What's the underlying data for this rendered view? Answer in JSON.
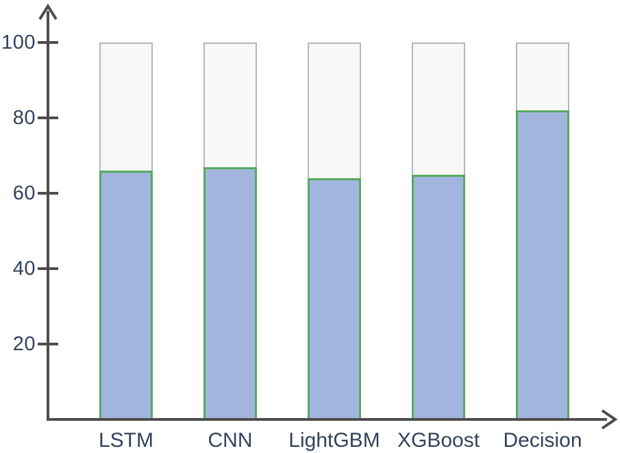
{
  "chart_data": {
    "type": "bar",
    "title": "",
    "categories": [
      "LSTM",
      "CNN",
      "LightGBM",
      "XGBoost",
      "Decision"
    ],
    "values": [
      66,
      67,
      64,
      65,
      82
    ],
    "track_max": 100,
    "xlabel": "",
    "ylabel": "",
    "ylim": [
      0,
      110
    ],
    "yticks": [
      20,
      40,
      60,
      80,
      100
    ],
    "grid": false,
    "legend_position": "none",
    "colors": {
      "bar_fill": "#a2b5df",
      "bar_border": "#56aa5e",
      "track_fill": "#f7f9f7",
      "track_border": "#b4b7b7",
      "axis": "#4d4d4d",
      "tick_label": "#33415c"
    }
  }
}
